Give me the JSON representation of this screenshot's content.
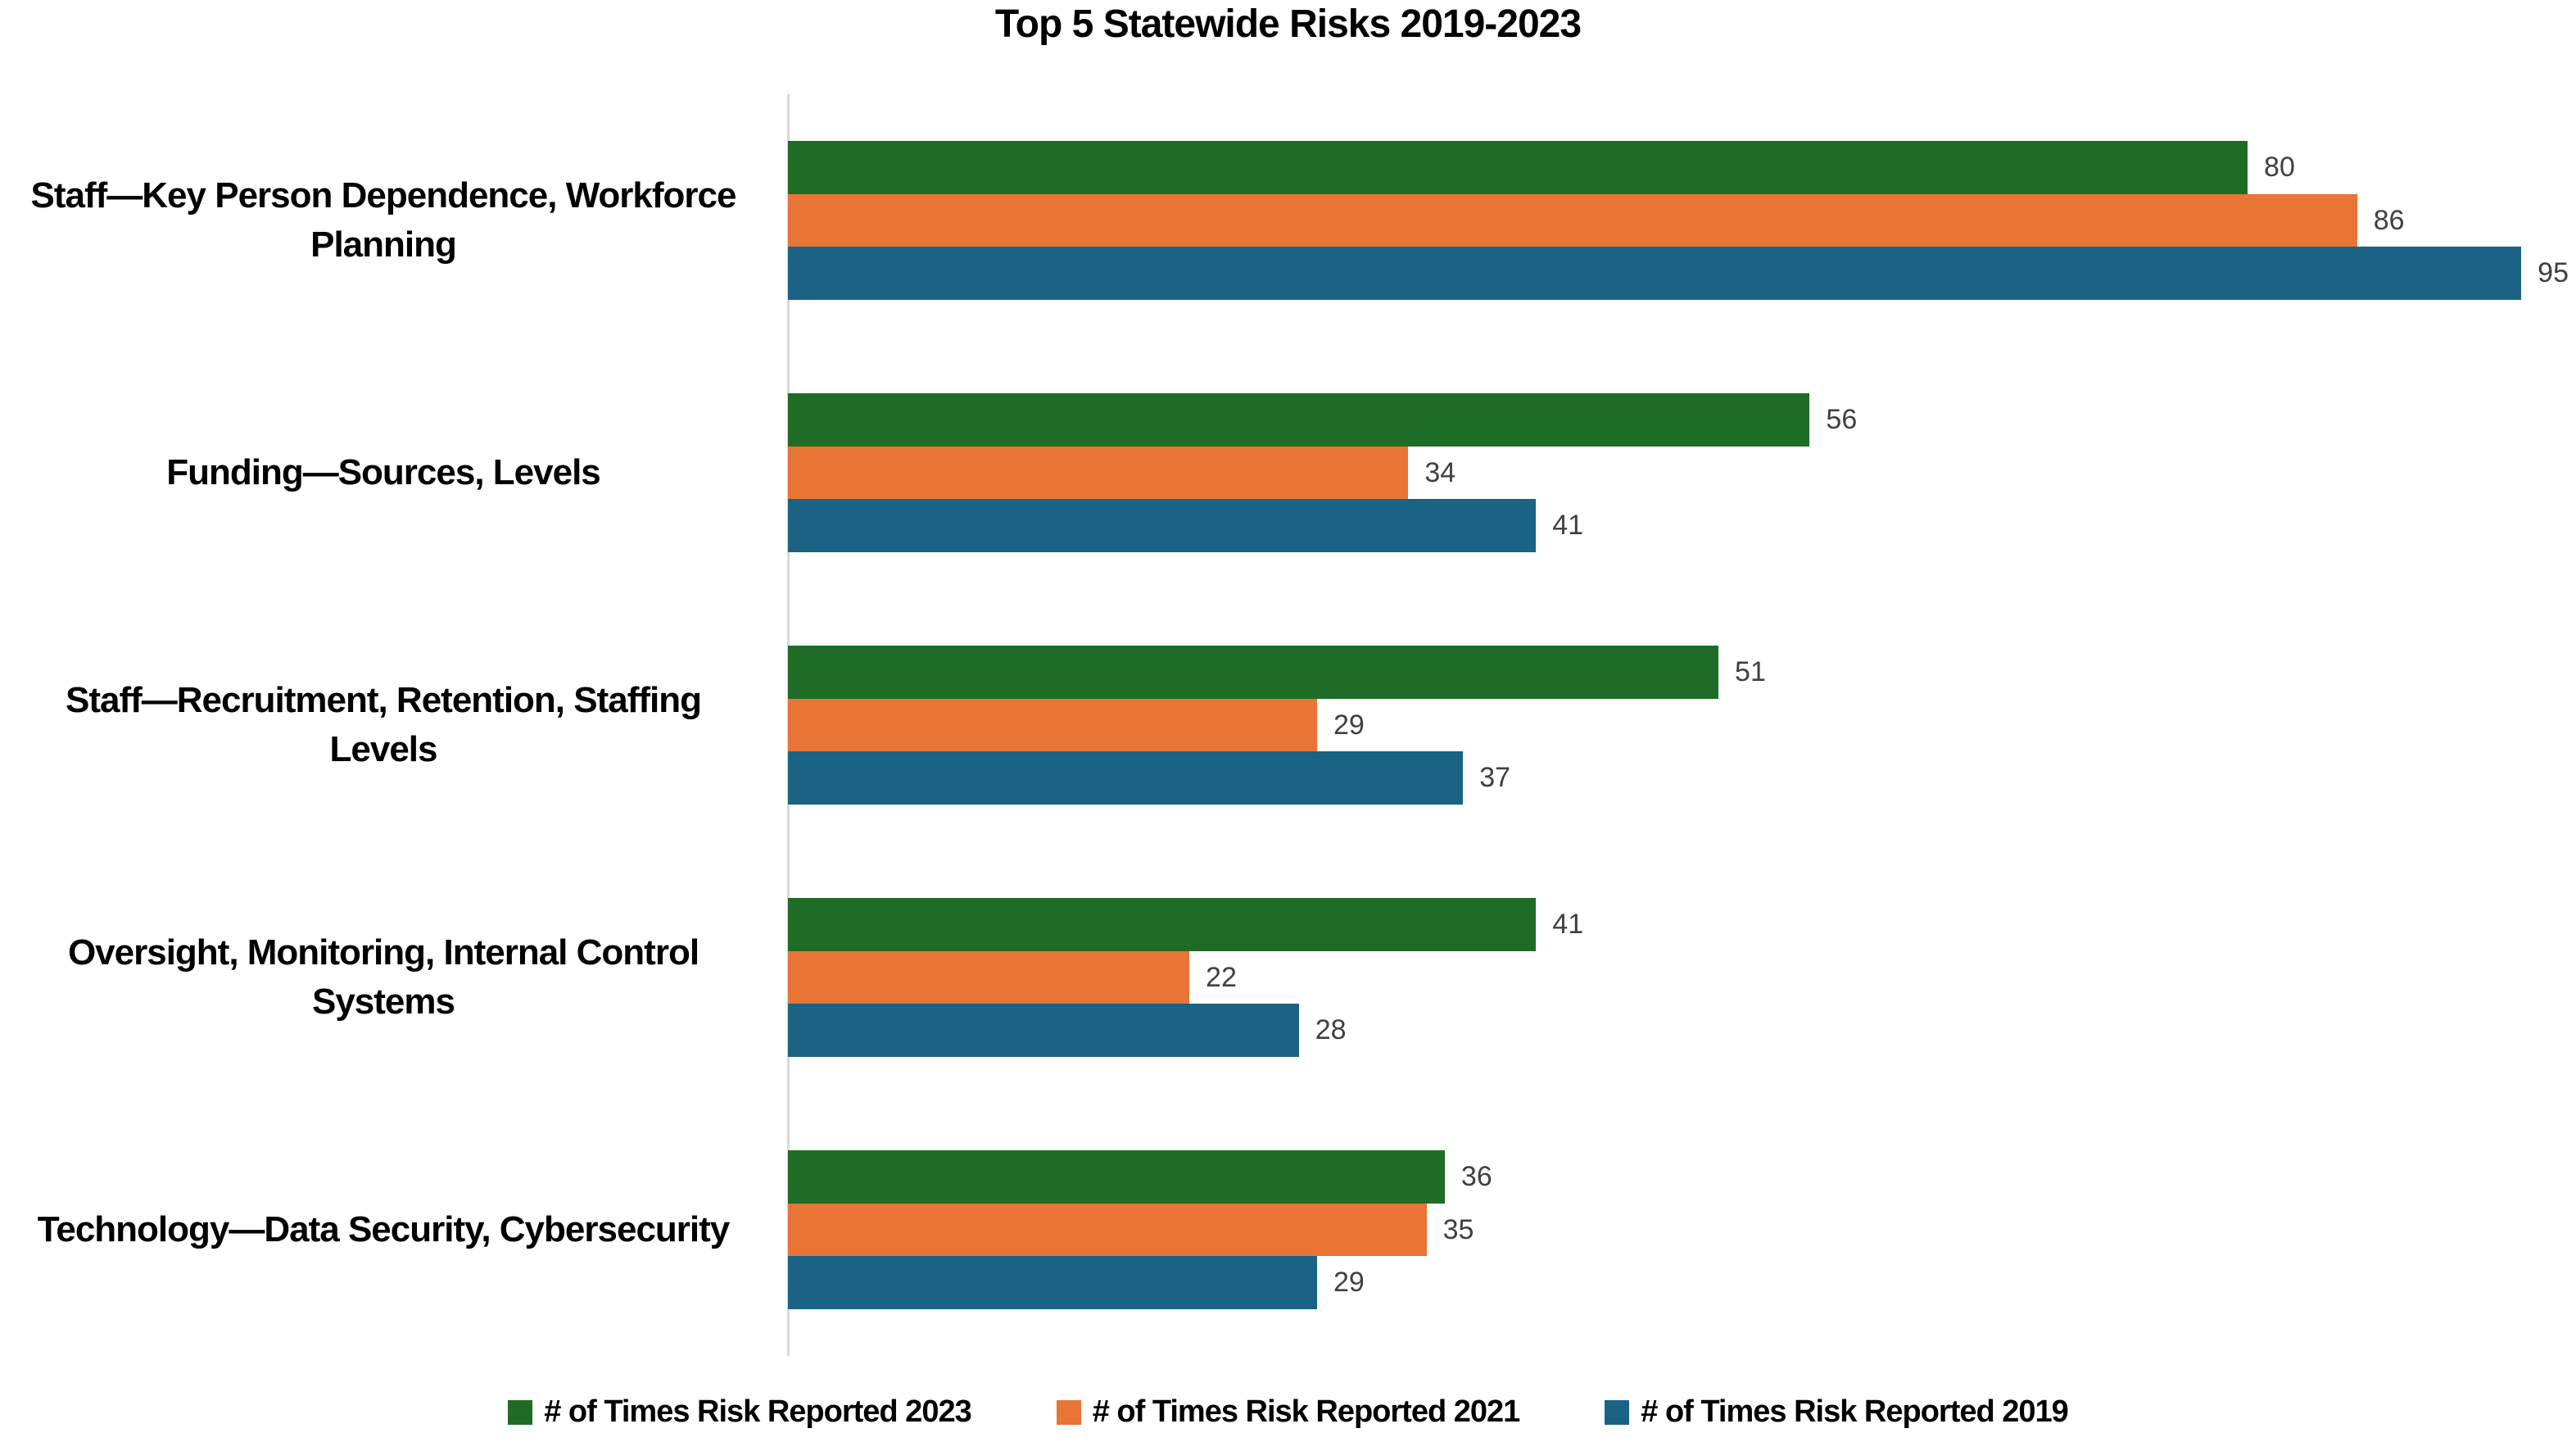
{
  "title": "Top 5 Statewide Risks 2019-2023",
  "chart_data": {
    "type": "bar",
    "orientation": "horizontal",
    "title": "Top 5 Statewide Risks 2019-2023",
    "categories": [
      "Staff—Key Person Dependence, Workforce Planning",
      "Funding—Sources, Levels",
      "Staff—Recruitment, Retention, Staffing Levels",
      "Oversight, Monitoring, Internal Control Systems",
      "Technology—Data Security, Cybersecurity"
    ],
    "series": [
      {
        "name": "# of Times Risk Reported 2023",
        "color": "#1e6c26",
        "values": [
          80,
          56,
          51,
          41,
          36
        ]
      },
      {
        "name": "# of Times Risk Reported 2021",
        "color": "#e87435",
        "values": [
          86,
          34,
          29,
          22,
          35
        ]
      },
      {
        "name": "# of Times Risk Reported 2019",
        "color": "#1a6384",
        "values": [
          95,
          41,
          37,
          28,
          29
        ]
      }
    ],
    "xlabel": "",
    "ylabel": "",
    "xlim": [
      0,
      98
    ],
    "grid": false,
    "legend_position": "bottom",
    "value_labels": true,
    "value_label_color": "#404040",
    "axis_line_color": "#d9d9d9"
  }
}
